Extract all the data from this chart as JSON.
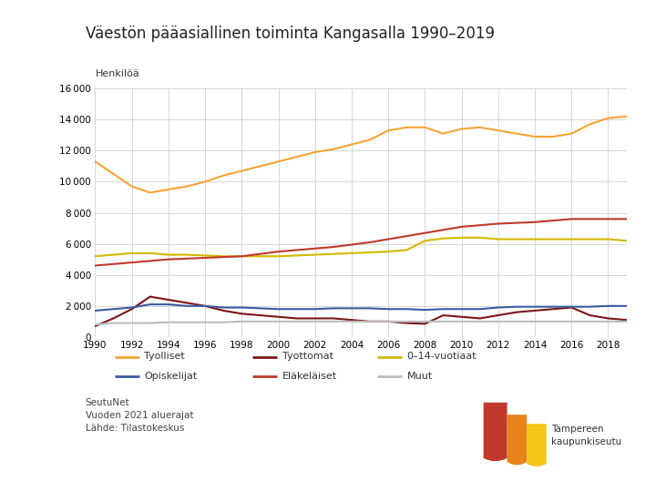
{
  "title": "Väestön pääasiallinen toiminta Kangasalla 1990–2019",
  "ylabel": "Henkilöä",
  "years": [
    1990,
    1991,
    1992,
    1993,
    1994,
    1995,
    1996,
    1997,
    1998,
    1999,
    2000,
    2001,
    2002,
    2003,
    2004,
    2005,
    2006,
    2007,
    2008,
    2009,
    2010,
    2011,
    2012,
    2013,
    2014,
    2015,
    2016,
    2017,
    2018,
    2019
  ],
  "tyolliset": [
    11300,
    10500,
    9700,
    9300,
    9500,
    9700,
    10000,
    10400,
    10700,
    11000,
    11300,
    11600,
    11900,
    12100,
    12400,
    12700,
    13300,
    13500,
    13500,
    13100,
    13400,
    13500,
    13300,
    13100,
    12900,
    12900,
    13100,
    13700,
    14100,
    14200
  ],
  "tyottomat": [
    700,
    1200,
    1800,
    2600,
    2400,
    2200,
    2000,
    1700,
    1500,
    1400,
    1300,
    1200,
    1200,
    1200,
    1100,
    1000,
    1000,
    900,
    850,
    1400,
    1300,
    1200,
    1400,
    1600,
    1700,
    1800,
    1900,
    1400,
    1200,
    1100
  ],
  "014vuotiaat": [
    5200,
    5300,
    5400,
    5400,
    5300,
    5300,
    5250,
    5200,
    5200,
    5200,
    5200,
    5250,
    5300,
    5350,
    5400,
    5450,
    5500,
    5600,
    6200,
    6350,
    6400,
    6400,
    6300,
    6300,
    6300,
    6300,
    6300,
    6300,
    6300,
    6200
  ],
  "opiskelijat": [
    1700,
    1800,
    1900,
    2100,
    2100,
    2000,
    2000,
    1900,
    1900,
    1850,
    1800,
    1800,
    1800,
    1850,
    1850,
    1850,
    1800,
    1800,
    1750,
    1800,
    1800,
    1800,
    1900,
    1950,
    1950,
    1950,
    1950,
    1950,
    2000,
    2000
  ],
  "elakelaset": [
    4600,
    4700,
    4800,
    4900,
    5000,
    5050,
    5100,
    5150,
    5200,
    5350,
    5500,
    5600,
    5700,
    5800,
    5950,
    6100,
    6300,
    6500,
    6700,
    6900,
    7100,
    7200,
    7300,
    7350,
    7400,
    7500,
    7600,
    7600,
    7600,
    7600
  ],
  "muut": [
    800,
    900,
    900,
    900,
    950,
    950,
    950,
    950,
    1000,
    1000,
    1000,
    1000,
    1000,
    1000,
    1000,
    1000,
    1000,
    1000,
    1000,
    1000,
    1000,
    1000,
    1000,
    1000,
    1000,
    1000,
    1000,
    1000,
    1000,
    1000
  ],
  "color_tyolliset": "#F4A536",
  "color_tyottomat": "#7B1515",
  "color_014vuotiaat": "#D4B800",
  "color_opiskelijat": "#3A5BA0",
  "color_elakelaset": "#C0392B",
  "color_muut": "#BBBBBB",
  "ylim": [
    0,
    16000
  ],
  "yticks": [
    0,
    2000,
    4000,
    6000,
    8000,
    10000,
    12000,
    14000,
    16000
  ],
  "source_text": "SeutuNet\nVuoden 2021 aluerajat\nLähde: Tilastokeskus",
  "background_color": "#FFFFFF",
  "legend_labels": [
    "Tyolliset",
    "Tyottomat",
    "0–14-vuotiaat",
    "Opiskelijat",
    "Eläkeläiset",
    "Muut"
  ]
}
